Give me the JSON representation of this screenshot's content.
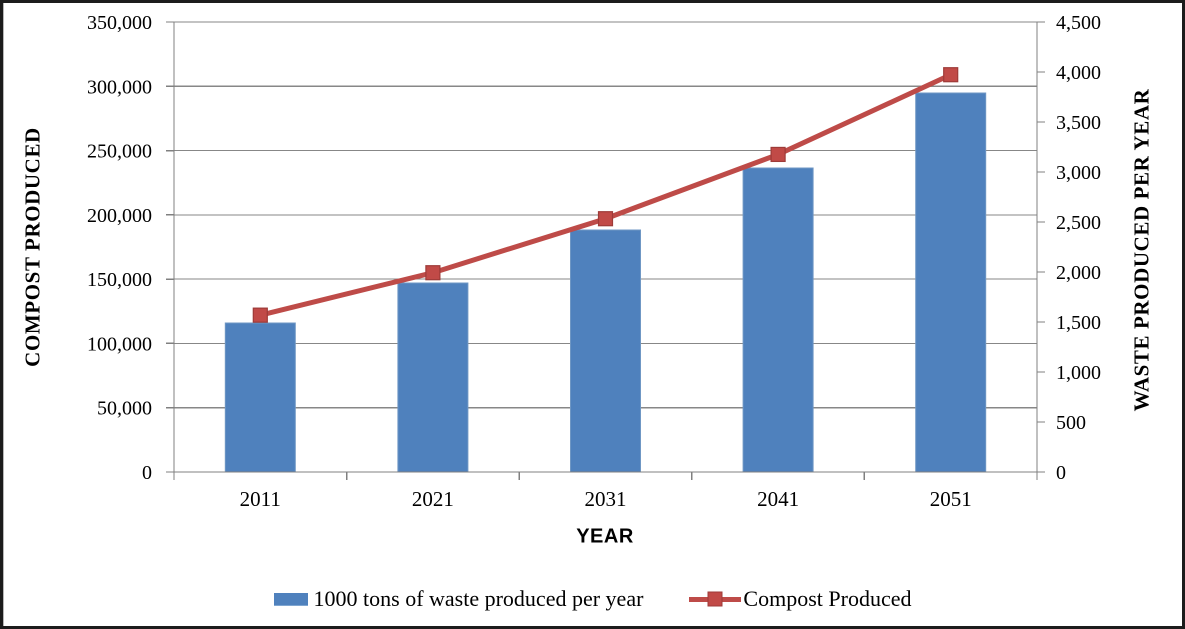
{
  "chart_data": {
    "type": "bar+line",
    "title": "",
    "categories": [
      "2011",
      "2021",
      "2031",
      "2041",
      "2051"
    ],
    "series": [
      {
        "name": "1000 tons of waste produced per year",
        "type": "bar",
        "axis": "right",
        "color": "#4F81BD",
        "values": [
          1490,
          1890,
          2420,
          3040,
          3790
        ]
      },
      {
        "name": "Compost Produced",
        "type": "line",
        "axis": "left",
        "color": "#BE4B48",
        "marker": "square",
        "values": [
          122000,
          155000,
          197000,
          247000,
          309000
        ]
      }
    ],
    "x_axis": {
      "title": "YEAR",
      "tick_labels": [
        "2011",
        "2021",
        "2031",
        "2041",
        "2051"
      ]
    },
    "left_axis": {
      "title": "COMPOST PRODUCED",
      "min": 0,
      "max": 350000,
      "step": 50000,
      "tick_labels": [
        "0",
        "50,000",
        "100,000",
        "150,000",
        "200,000",
        "250,000",
        "300,000",
        "350,000"
      ]
    },
    "right_axis": {
      "title": "WASTE PRODUCED PER YEAR",
      "min": 0,
      "max": 4500,
      "step": 500,
      "tick_labels": [
        "0",
        "500",
        "1,000",
        "1,500",
        "2,000",
        "2,500",
        "3,000",
        "3,500",
        "4,000",
        "4,500"
      ]
    },
    "legend": {
      "position": "bottom",
      "entries": [
        {
          "label": "1000 tons of waste produced per year",
          "swatch": "bar",
          "color": "#4F81BD"
        },
        {
          "label": "Compost Produced",
          "swatch": "line-marker",
          "color": "#BE4B48"
        }
      ]
    },
    "grid": true,
    "gridline_color": "#878787",
    "axis_color": "#808080",
    "background": "#FFFFFF"
  }
}
